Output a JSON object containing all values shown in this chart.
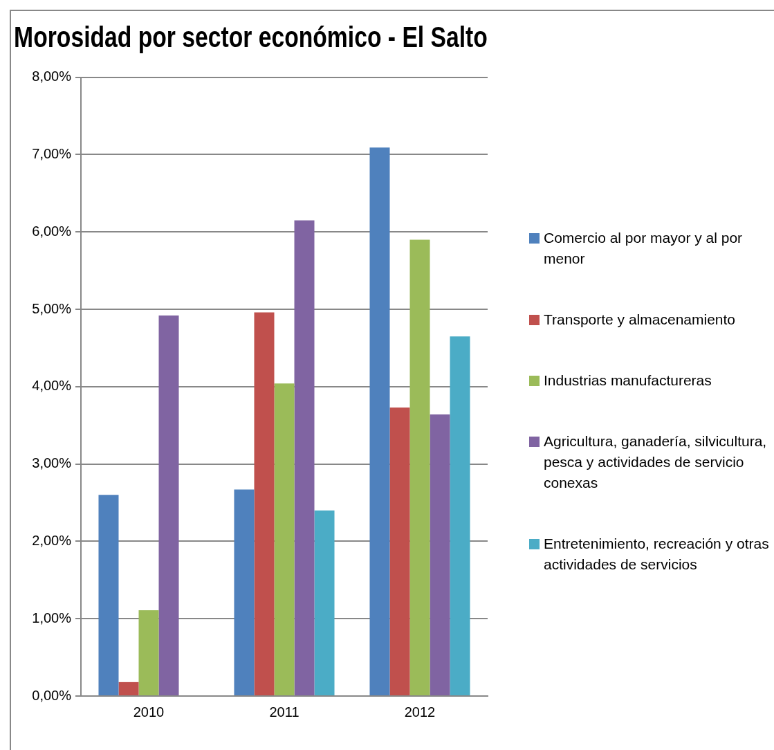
{
  "chart_data": {
    "type": "bar",
    "title": "Morosidad por sector económico - El Salto",
    "categories": [
      "2010",
      "2011",
      "2012"
    ],
    "series": [
      {
        "name": "Comercio al por mayor y al por menor",
        "color": "#4f81bd",
        "values": [
          2.6,
          2.67,
          7.09
        ]
      },
      {
        "name": "Transporte y almacenamiento",
        "color": "#c0504d",
        "values": [
          0.18,
          4.96,
          3.73
        ]
      },
      {
        "name": "Industrias manufactureras",
        "color": "#9bbb59",
        "values": [
          1.11,
          4.04,
          5.9
        ]
      },
      {
        "name": "Agricultura, ganadería, silvicultura,  pesca y actividades de servicio conexas",
        "color": "#8064a2",
        "values": [
          4.92,
          6.15,
          3.64
        ]
      },
      {
        "name": "Entretenimiento, recreación y otras actividades de servicios",
        "color": "#4bacc6",
        "values": [
          null,
          2.4,
          4.65
        ]
      }
    ],
    "ylim": [
      0,
      8
    ],
    "yticks": [
      {
        "value": 0,
        "label": "0,00%"
      },
      {
        "value": 1,
        "label": "1,00%"
      },
      {
        "value": 2,
        "label": "2,00%"
      },
      {
        "value": 3,
        "label": "3,00%"
      },
      {
        "value": 4,
        "label": "4,00%"
      },
      {
        "value": 5,
        "label": "5,00%"
      },
      {
        "value": 6,
        "label": "6,00%"
      },
      {
        "value": 7,
        "label": "7,00%"
      },
      {
        "value": 8,
        "label": "8,00%"
      }
    ],
    "grid": "y",
    "legend": "right"
  }
}
